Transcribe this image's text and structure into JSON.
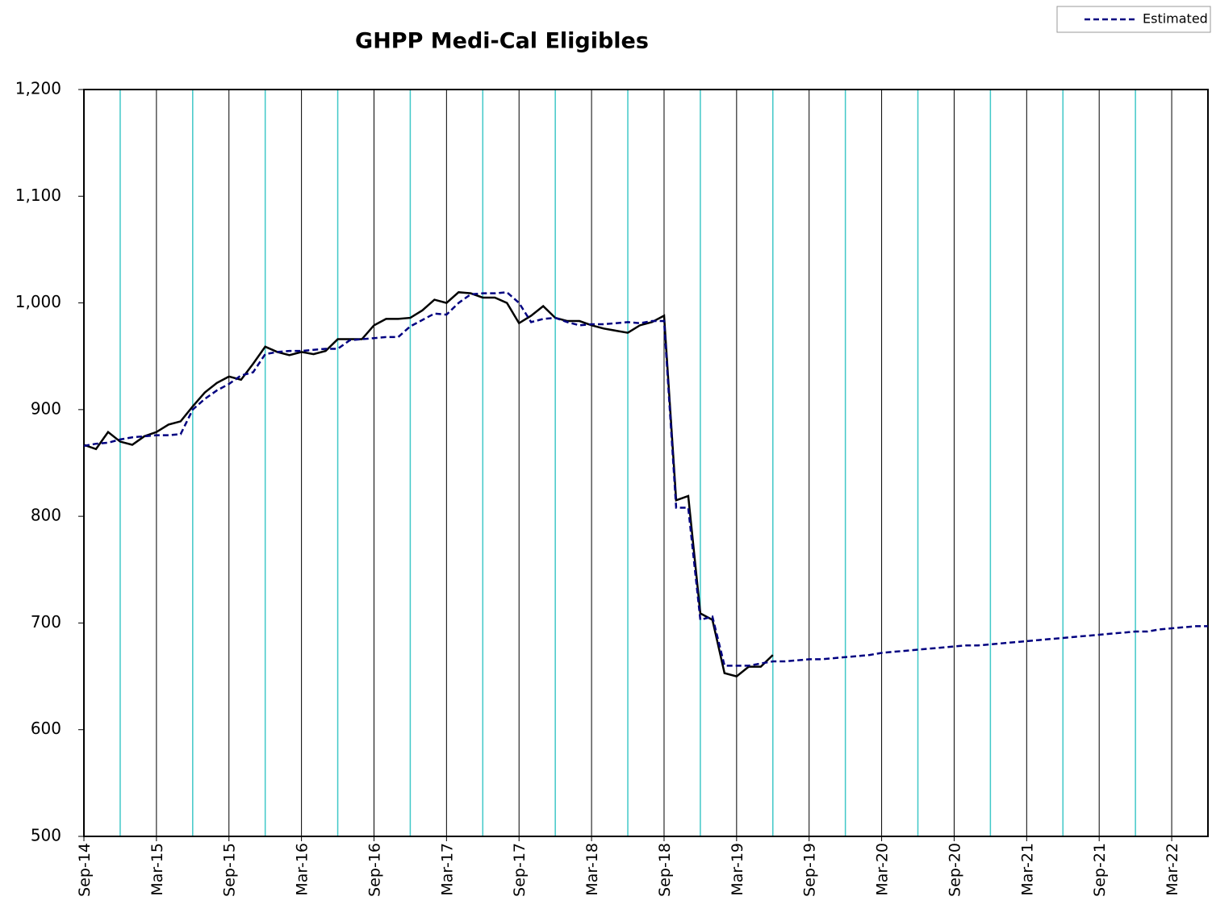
{
  "chart_data": {
    "type": "line",
    "title": "GHPP Medi-Cal Eligibles",
    "categories": [
      "Sep-14",
      null,
      null,
      null,
      null,
      null,
      "Mar-15",
      null,
      null,
      null,
      null,
      null,
      "Sep-15",
      null,
      null,
      null,
      null,
      null,
      "Mar-16",
      null,
      null,
      null,
      null,
      null,
      "Sep-16",
      null,
      null,
      null,
      null,
      null,
      "Mar-17",
      null,
      null,
      null,
      null,
      null,
      "Sep-17",
      null,
      null,
      null,
      null,
      null,
      "Mar-18",
      null,
      null,
      null,
      null,
      null,
      "Sep-18",
      null,
      null,
      null,
      null,
      null,
      "Mar-19",
      null,
      null,
      null,
      null,
      null,
      "Sep-19",
      null,
      null,
      null,
      null,
      null,
      "Mar-20",
      null,
      null,
      null,
      null,
      null,
      "Sep-20",
      null,
      null,
      null,
      null,
      null,
      "Mar-21",
      null,
      null,
      null,
      null,
      null,
      "Sep-21",
      null,
      null,
      null,
      null,
      null,
      "Mar-22",
      null,
      null,
      null
    ],
    "series": [
      {
        "color": "#000000",
        "dash": false,
        "values": [
          867,
          863,
          879,
          870,
          867,
          875,
          879,
          886,
          889,
          903,
          916,
          925,
          931,
          928,
          943,
          959,
          954,
          951,
          954,
          952,
          955,
          966,
          966,
          966,
          979,
          985,
          985,
          986,
          993,
          1003,
          1000,
          1010,
          1009,
          1005,
          1005,
          1000,
          981,
          988,
          997,
          986,
          983,
          983,
          979,
          976,
          974,
          972,
          979,
          982,
          988,
          815,
          819,
          709,
          703,
          653,
          650,
          659,
          659,
          670,
          null,
          null,
          null,
          null,
          null,
          null,
          null,
          null,
          null,
          null,
          null,
          null,
          null,
          null,
          null,
          null,
          null,
          null,
          null,
          null,
          null,
          null,
          null,
          null,
          null,
          null,
          null,
          null,
          null,
          null,
          null,
          null,
          null,
          null,
          null,
          null
        ]
      },
      {
        "name": "Estimated",
        "color": "#000080",
        "dash": true,
        "values": [
          866,
          868,
          869,
          872,
          874,
          875,
          876,
          876,
          877,
          900,
          910,
          918,
          924,
          932,
          935,
          952,
          954,
          955,
          955,
          956,
          957,
          957,
          965,
          966,
          967,
          968,
          968,
          978,
          984,
          990,
          989,
          1000,
          1008,
          1009,
          1009,
          1010,
          1000,
          982,
          985,
          986,
          982,
          979,
          980,
          980,
          981,
          982,
          981,
          983,
          983,
          808,
          808,
          703,
          706,
          660,
          660,
          660,
          662,
          664,
          664,
          665,
          666,
          666,
          667,
          668,
          669,
          670,
          672,
          673,
          674,
          675,
          676,
          677,
          678,
          679,
          679,
          680,
          681,
          682,
          683,
          684,
          685,
          686,
          687,
          688,
          689,
          690,
          691,
          692,
          692,
          694,
          695,
          696,
          697,
          697
        ]
      }
    ],
    "ylim": [
      500,
      1200
    ],
    "yticks": [
      500,
      600,
      700,
      800,
      900,
      {
        "value": 1000,
        "label": "1,000"
      },
      {
        "value": 1100,
        "label": "1,100"
      },
      {
        "value": 1200,
        "label": "1,200"
      }
    ],
    "grid": true,
    "grid_color": "#000000",
    "minor_grid_color": "#40c8c8",
    "legend": "top-right"
  }
}
